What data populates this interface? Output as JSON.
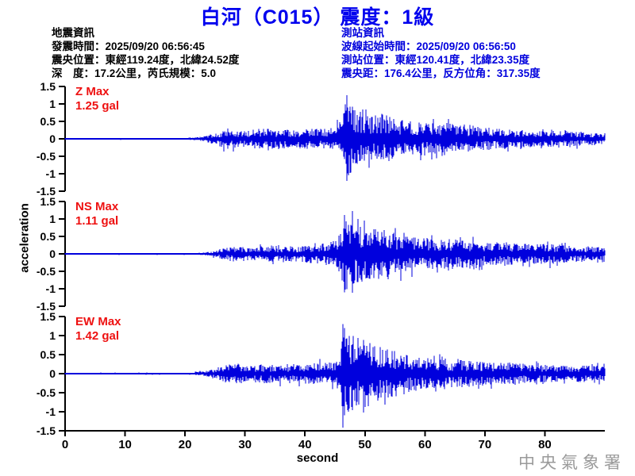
{
  "header": {
    "title": "白河（C015） 震度：1級",
    "title_color": "#0000ee"
  },
  "earthquake_info": {
    "heading": "地震資訊",
    "color": "#000000",
    "lines": [
      "發震時間：2025/09/20 06:56:45",
      "震央位置：東經119.24度，北緯24.52度",
      "深　度：17.2公里，芮氏規模：5.0"
    ]
  },
  "station_info": {
    "heading": "測站資訊",
    "color": "#0000dd",
    "lines": [
      "波線起始時間：2025/09/20 06:56:50",
      "測站位置：東經120.41度，北緯23.35度",
      "震央距：176.4公里，反方位角：317.35度"
    ]
  },
  "footer": {
    "watermark": "中央氣象署",
    "watermark_color": "#9a9a9a"
  },
  "chart_data": {
    "type": "line",
    "title": "白河（C015） 震度：1級",
    "xlabel": "second",
    "ylabel": "acceleration",
    "unit": "gal",
    "x_range": [
      0,
      90
    ],
    "x_ticks": [
      "0",
      "10",
      "20",
      "30",
      "40",
      "50",
      "60",
      "70",
      "80"
    ],
    "x_tick_values": [
      0,
      10,
      20,
      30,
      40,
      50,
      60,
      70,
      80
    ],
    "y_range": [
      -1.5,
      1.5
    ],
    "y_ticks": [
      "1.5",
      "1",
      "0.5",
      "0",
      "-0.5",
      "-1",
      "-1.5"
    ],
    "y_tick_values": [
      1.5,
      1,
      0.5,
      0,
      -0.5,
      -1,
      -1.5
    ],
    "grid": false,
    "line_color": "#0000dd",
    "label_color": "#ee1111",
    "axis_color": "#000000",
    "series": [
      {
        "name": "Z",
        "max_label": "Z Max",
        "max_value": "1.25 gal",
        "peak_up": 1.25,
        "peak_down": 1.2,
        "peak_t": 47.0,
        "seed": 42,
        "envelope": [
          [
            0,
            0.02
          ],
          [
            20,
            0.025
          ],
          [
            23,
            0.07
          ],
          [
            25,
            0.16
          ],
          [
            27,
            0.3
          ],
          [
            29,
            0.24
          ],
          [
            32,
            0.28
          ],
          [
            35,
            0.3
          ],
          [
            38,
            0.26
          ],
          [
            41,
            0.3
          ],
          [
            43,
            0.28
          ],
          [
            45,
            0.33
          ],
          [
            45.8,
            0.5
          ],
          [
            46.5,
            0.95
          ],
          [
            47,
            1.2
          ],
          [
            48,
            0.95
          ],
          [
            49,
            0.8
          ],
          [
            50,
            0.88
          ],
          [
            51.5,
            0.68
          ],
          [
            53,
            0.72
          ],
          [
            55,
            0.58
          ],
          [
            57,
            0.52
          ],
          [
            59,
            0.48
          ],
          [
            61,
            0.44
          ],
          [
            63,
            0.5
          ],
          [
            65,
            0.4
          ],
          [
            67,
            0.42
          ],
          [
            69,
            0.34
          ],
          [
            71,
            0.3
          ],
          [
            74,
            0.27
          ],
          [
            77,
            0.24
          ],
          [
            80,
            0.22
          ],
          [
            83,
            0.26
          ],
          [
            86,
            0.2
          ],
          [
            90,
            0.17
          ]
        ]
      },
      {
        "name": "NS",
        "max_label": "NS Max",
        "max_value": "1.11 gal",
        "peak_up": 1.11,
        "peak_down": 1.1,
        "peak_t": 46.6,
        "seed": 77,
        "envelope": [
          [
            0,
            0.02
          ],
          [
            22,
            0.025
          ],
          [
            24,
            0.06
          ],
          [
            26,
            0.14
          ],
          [
            28,
            0.22
          ],
          [
            31,
            0.2
          ],
          [
            34,
            0.24
          ],
          [
            37,
            0.22
          ],
          [
            40,
            0.26
          ],
          [
            42,
            0.3
          ],
          [
            44,
            0.32
          ],
          [
            45.5,
            0.45
          ],
          [
            46.3,
            0.9
          ],
          [
            46.8,
            1.05
          ],
          [
            47.5,
            0.95
          ],
          [
            48.5,
            0.8
          ],
          [
            50,
            0.85
          ],
          [
            51.5,
            0.75
          ],
          [
            53,
            0.7
          ],
          [
            55,
            0.6
          ],
          [
            57,
            0.55
          ],
          [
            59,
            0.5
          ],
          [
            61,
            0.45
          ],
          [
            63,
            0.42
          ],
          [
            65,
            0.44
          ],
          [
            67,
            0.38
          ],
          [
            69,
            0.34
          ],
          [
            71,
            0.32
          ],
          [
            73,
            0.35
          ],
          [
            75,
            0.3
          ],
          [
            78,
            0.28
          ],
          [
            81,
            0.3
          ],
          [
            84,
            0.25
          ],
          [
            87,
            0.22
          ],
          [
            90,
            0.2
          ]
        ]
      },
      {
        "name": "EW",
        "max_label": "EW Max",
        "max_value": "1.42 gal",
        "peak_up": 1.3,
        "peak_down": 1.42,
        "peak_t": 46.3,
        "seed": 133,
        "envelope": [
          [
            0,
            0.02
          ],
          [
            21,
            0.025
          ],
          [
            23,
            0.06
          ],
          [
            25,
            0.15
          ],
          [
            27,
            0.24
          ],
          [
            29,
            0.26
          ],
          [
            31,
            0.22
          ],
          [
            33,
            0.26
          ],
          [
            35,
            0.24
          ],
          [
            37,
            0.26
          ],
          [
            39,
            0.25
          ],
          [
            41,
            0.28
          ],
          [
            43,
            0.27
          ],
          [
            45,
            0.32
          ],
          [
            45.9,
            0.55
          ],
          [
            46.3,
            1.3
          ],
          [
            47,
            1.1
          ],
          [
            48,
            1.05
          ],
          [
            49,
            0.95
          ],
          [
            50,
            0.9
          ],
          [
            51.5,
            0.8
          ],
          [
            53,
            0.7
          ],
          [
            55,
            0.62
          ],
          [
            57,
            0.55
          ],
          [
            59,
            0.48
          ],
          [
            61,
            0.42
          ],
          [
            63,
            0.38
          ],
          [
            65,
            0.35
          ],
          [
            67,
            0.37
          ],
          [
            69,
            0.32
          ],
          [
            71,
            0.3
          ],
          [
            73,
            0.28
          ],
          [
            75,
            0.3
          ],
          [
            77,
            0.26
          ],
          [
            80,
            0.24
          ],
          [
            83,
            0.22
          ],
          [
            86,
            0.23
          ],
          [
            90,
            0.2
          ]
        ]
      }
    ]
  }
}
